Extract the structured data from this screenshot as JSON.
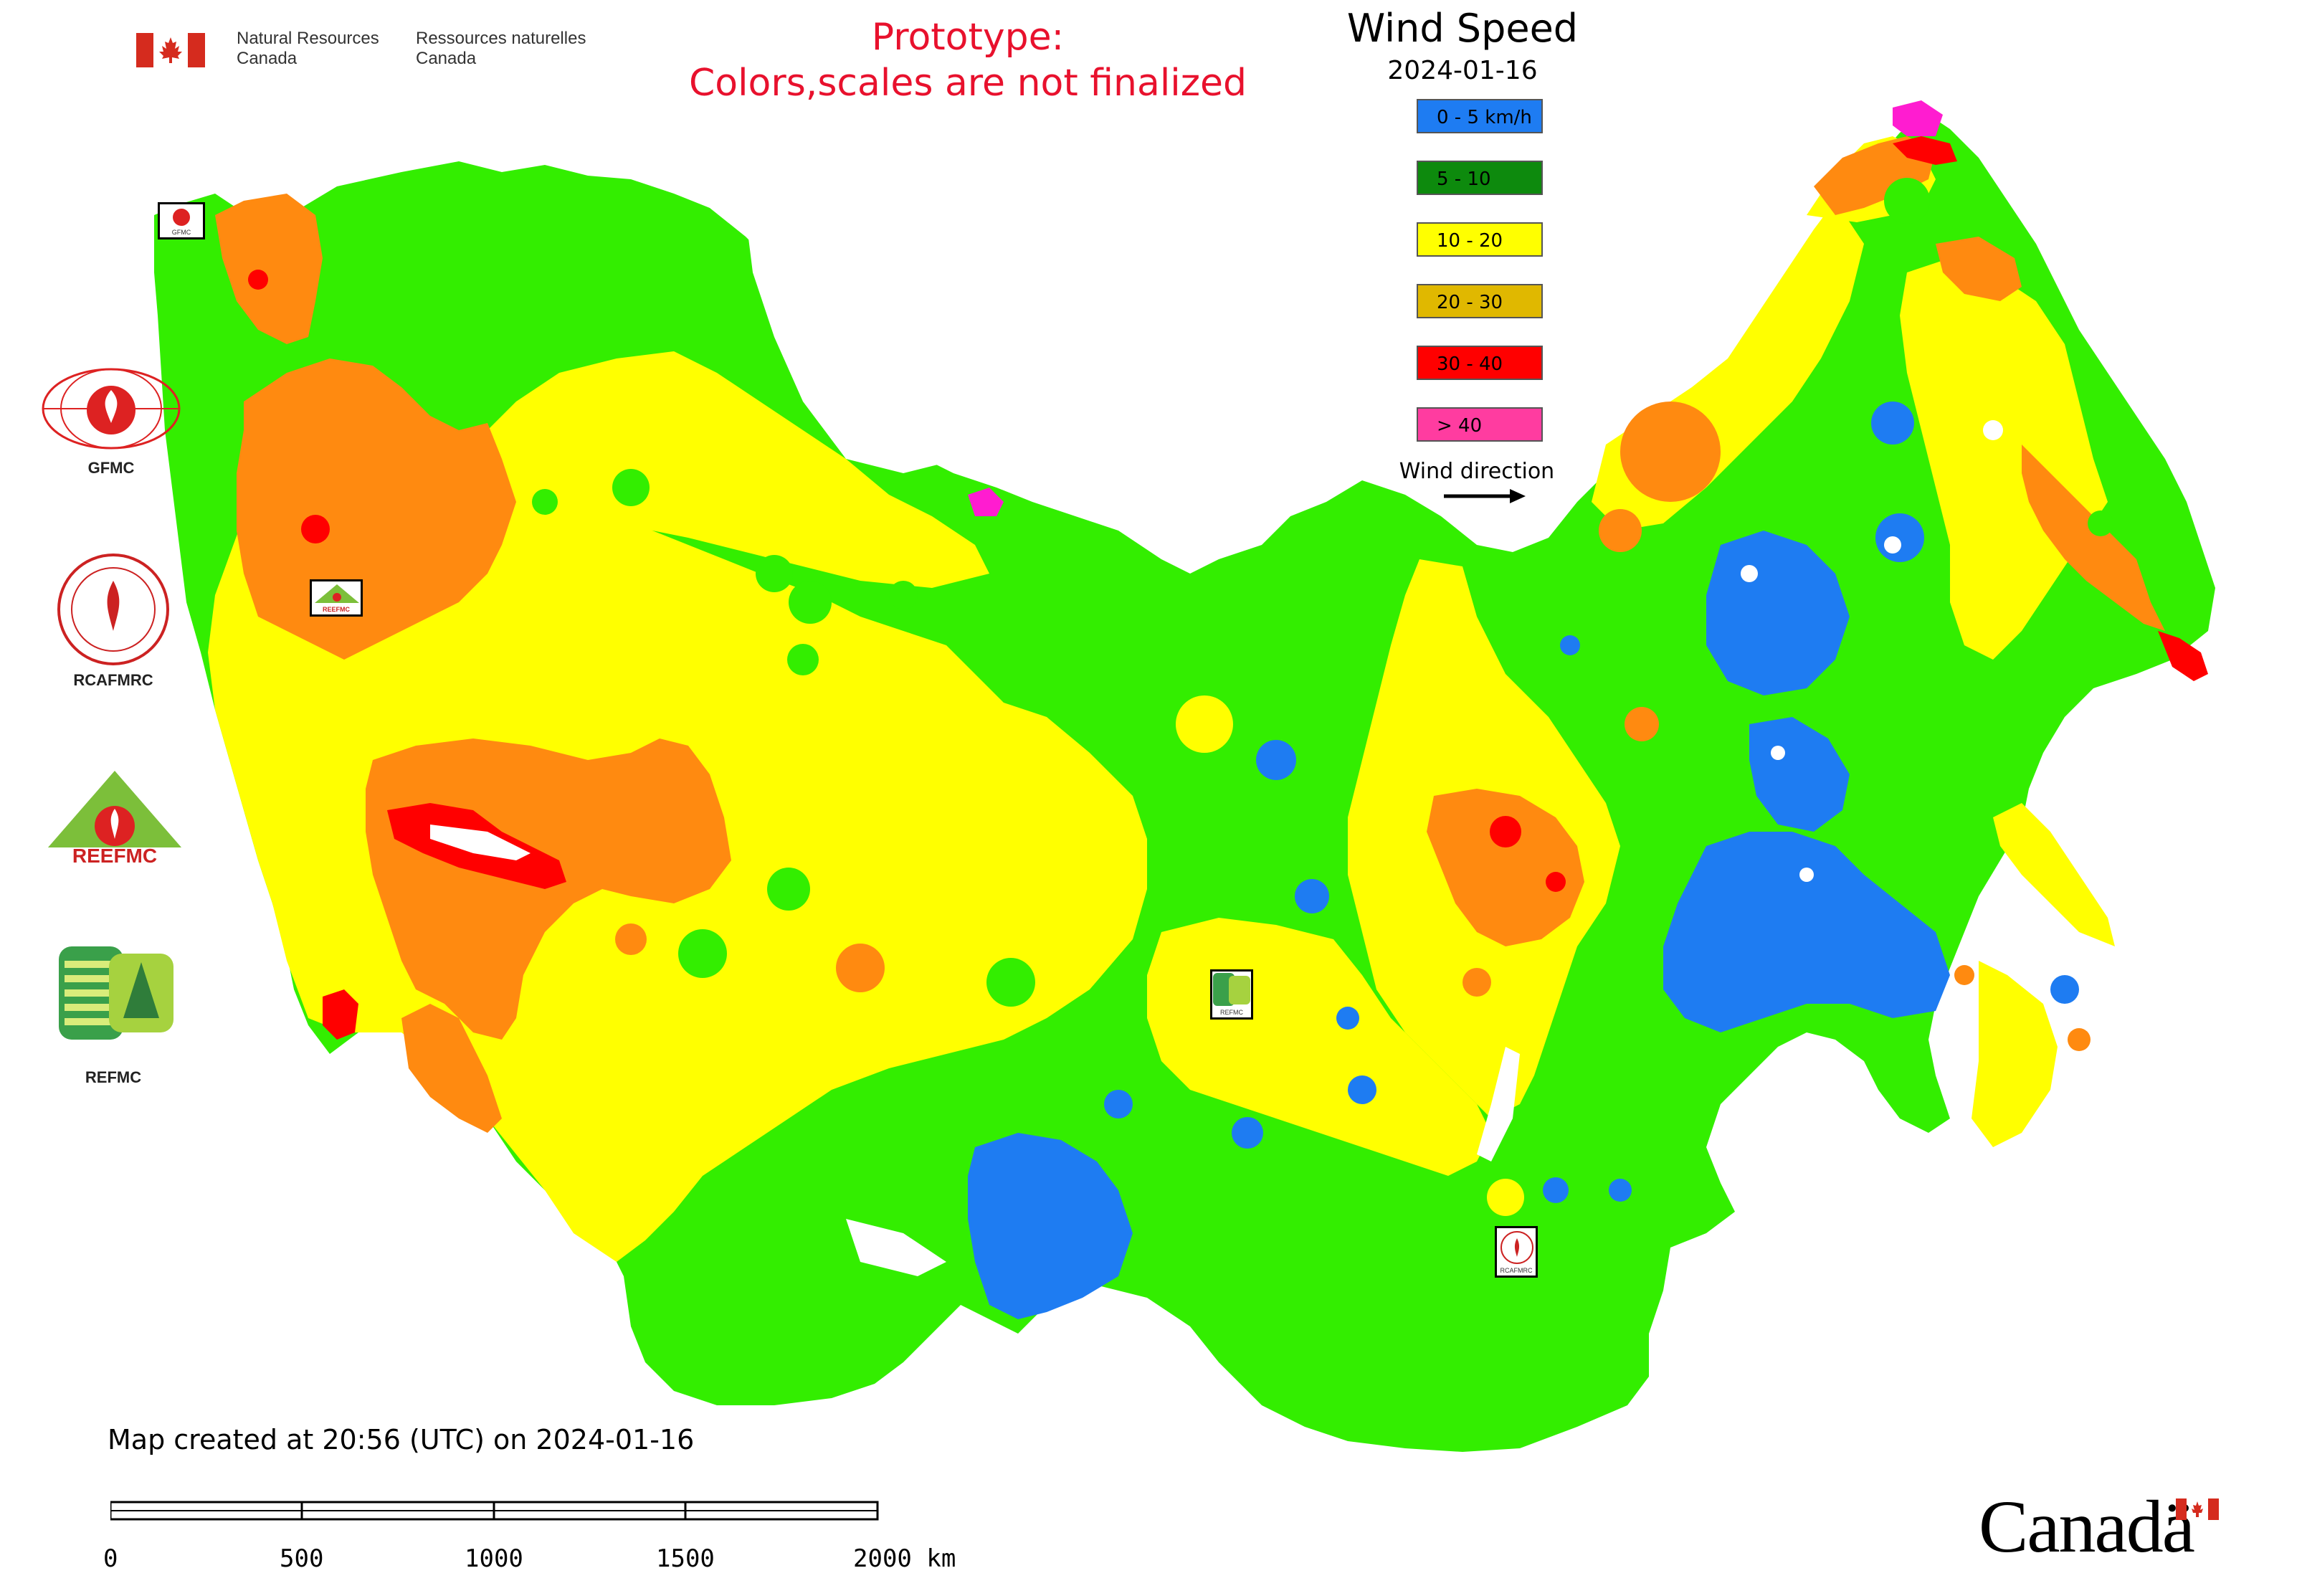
{
  "header": {
    "nrcan_en_line1": "Natural Resources",
    "nrcan_en_line2": "Canada",
    "nrcan_fr_line1": "Ressources naturelles",
    "nrcan_fr_line2": "Canada",
    "prototype_line1": "Prototype:",
    "prototype_line2": "Colors,scales are not finalized"
  },
  "legend": {
    "title": "Wind Speed",
    "date": "2024-01-16",
    "classes": [
      {
        "label": "0 - 5 km/h",
        "color": "#1e7cf2"
      },
      {
        "label": "5 - 10",
        "color": "#0d8a0d"
      },
      {
        "label": "10 - 20",
        "color": "#ffff00"
      },
      {
        "label": "20 - 30",
        "color": "#e0b800"
      },
      {
        "label": "30 - 40",
        "color": "#ff0000"
      },
      {
        "label": "> 40",
        "color": "#ff3ca0"
      }
    ],
    "wind_direction_label": "Wind direction"
  },
  "map_colors": {
    "class_0_5": "#1e7cf2",
    "class_5_10_fill": "#33ee00",
    "class_10_20": "#ffff00",
    "class_20_30_fill": "#ff8a10",
    "class_30_40": "#ff0000",
    "class_gt40": "#ff1cd0"
  },
  "partners": [
    {
      "name": "GFMC",
      "icon": "gfmc-logo"
    },
    {
      "name": "RCAFMRC",
      "icon": "rcafmrc-logo"
    },
    {
      "name": "REEFMC",
      "icon": "reefmc-logo"
    },
    {
      "name": "REFMC",
      "icon": "refmc-logo"
    }
  ],
  "map_markers": [
    {
      "label": "GFMC"
    },
    {
      "label": "REEFMC"
    },
    {
      "label": "REFMC"
    },
    {
      "label": "RCAFMRC"
    }
  ],
  "footer": {
    "created": "Map created at 20:56 (UTC) on 2024-01-16",
    "scale_ticks": [
      "0",
      "500",
      "1000",
      "1500",
      "2000 km"
    ],
    "wordmark": "Canadä"
  }
}
